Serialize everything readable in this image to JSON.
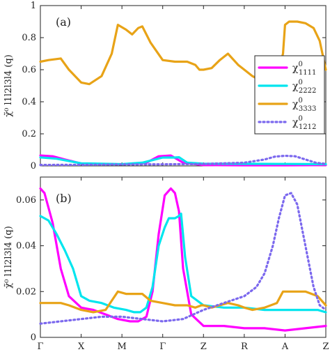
{
  "chart_data": [
    {
      "type": "line",
      "panel_label": "(a)",
      "ylabel": "χ̃⁰ l1l2l3l4 (q)",
      "ylim": [
        0,
        1
      ],
      "yticks": [
        "0",
        "0.2",
        "0.4",
        "0.6",
        "0.8",
        "1"
      ],
      "x_categories": [
        "Γ",
        "X",
        "M",
        "Γ",
        "Z",
        "R",
        "A",
        "Z"
      ],
      "grid": false,
      "legend_position": "right",
      "series": [
        {
          "name": "χ⁰1111",
          "color": "#ff00ff",
          "style": "solid",
          "x": [
            0,
            0.3,
            0.6,
            1,
            2,
            2.6,
            2.9,
            3.2,
            3.5,
            4,
            5,
            6,
            7
          ],
          "y": [
            0.065,
            0.06,
            0.04,
            0.015,
            0.01,
            0.02,
            0.06,
            0.065,
            0.02,
            0.005,
            0.004,
            0.004,
            0.005
          ]
        },
        {
          "name": "χ⁰2222",
          "color": "#00e5ee",
          "style": "solid",
          "x": [
            0,
            0.4,
            1,
            2,
            2.5,
            3,
            3.3,
            3.4,
            3.6,
            4,
            5,
            6,
            7
          ],
          "y": [
            0.053,
            0.045,
            0.016,
            0.011,
            0.02,
            0.052,
            0.052,
            0.054,
            0.02,
            0.014,
            0.013,
            0.012,
            0.011
          ]
        },
        {
          "name": "χ⁰3333",
          "color": "#e8a317",
          "style": "solid",
          "x": [
            0,
            0.2,
            0.5,
            0.7,
            1,
            1.2,
            1.5,
            1.75,
            1.9,
            2.1,
            2.25,
            2.4,
            2.5,
            2.7,
            3,
            3.3,
            3.6,
            3.8,
            3.9,
            4,
            4.2,
            4.4,
            4.6,
            4.85,
            5,
            5.2,
            5.5,
            5.8,
            5.95,
            6,
            6.1,
            6.3,
            6.5,
            6.7,
            6.85,
            7
          ],
          "y": [
            0.65,
            0.66,
            0.67,
            0.6,
            0.52,
            0.51,
            0.56,
            0.7,
            0.88,
            0.85,
            0.82,
            0.86,
            0.87,
            0.77,
            0.66,
            0.65,
            0.65,
            0.63,
            0.6,
            0.6,
            0.61,
            0.66,
            0.7,
            0.63,
            0.6,
            0.56,
            0.52,
            0.56,
            0.7,
            0.88,
            0.9,
            0.9,
            0.89,
            0.86,
            0.78,
            0.6
          ]
        },
        {
          "name": "χ⁰1212",
          "color": "#7b68ee",
          "style": "dotted",
          "x": [
            0,
            1,
            2,
            3,
            4,
            4.5,
            5,
            5.5,
            5.75,
            6,
            6.25,
            6.5,
            6.75,
            7
          ],
          "y": [
            0.006,
            0.007,
            0.009,
            0.01,
            0.012,
            0.016,
            0.02,
            0.04,
            0.058,
            0.063,
            0.06,
            0.04,
            0.02,
            0.012
          ]
        }
      ]
    },
    {
      "type": "line",
      "panel_label": "(b)",
      "ylabel": "χ̃⁰ l1l2l3l4 (q)",
      "ylim": [
        0,
        0.07
      ],
      "yticks": [
        "0",
        "0.02",
        "0.04",
        "0.06"
      ],
      "x_categories": [
        "Γ",
        "X",
        "M",
        "Γ",
        "Z",
        "R",
        "A",
        "Z"
      ],
      "grid": false,
      "series": [
        {
          "name": "χ⁰1111",
          "color": "#ff00ff",
          "style": "solid",
          "x": [
            0,
            0.1,
            0.3,
            0.5,
            0.7,
            1,
            1.3,
            1.6,
            1.9,
            2.2,
            2.4,
            2.6,
            2.75,
            2.9,
            3.05,
            3.2,
            3.3,
            3.4,
            3.5,
            3.7,
            4,
            4.5,
            5,
            5.5,
            6,
            6.5,
            7
          ],
          "y": [
            0.065,
            0.063,
            0.05,
            0.03,
            0.018,
            0.013,
            0.012,
            0.01,
            0.008,
            0.007,
            0.007,
            0.009,
            0.02,
            0.045,
            0.062,
            0.065,
            0.063,
            0.055,
            0.03,
            0.01,
            0.005,
            0.005,
            0.004,
            0.004,
            0.003,
            0.004,
            0.005
          ]
        },
        {
          "name": "χ⁰2222",
          "color": "#00e5ee",
          "style": "solid",
          "x": [
            0,
            0.2,
            0.4,
            0.6,
            0.8,
            1,
            1.2,
            1.5,
            1.8,
            2.1,
            2.3,
            2.45,
            2.6,
            2.75,
            2.9,
            3.05,
            3.15,
            3.3,
            3.4,
            3.45,
            3.55,
            3.7,
            4,
            4.5,
            5,
            5.5,
            6,
            6.5,
            6.8,
            7
          ],
          "y": [
            0.053,
            0.051,
            0.045,
            0.038,
            0.03,
            0.018,
            0.016,
            0.015,
            0.013,
            0.012,
            0.011,
            0.011,
            0.013,
            0.022,
            0.04,
            0.048,
            0.052,
            0.052,
            0.053,
            0.054,
            0.035,
            0.018,
            0.014,
            0.013,
            0.013,
            0.012,
            0.012,
            0.012,
            0.012,
            0.011
          ]
        },
        {
          "name": "χ⁰3333",
          "color": "#e8a317",
          "style": "solid",
          "x": [
            0,
            0.3,
            0.5,
            0.7,
            1,
            1.3,
            1.6,
            1.75,
            1.9,
            2.1,
            2.3,
            2.5,
            2.7,
            3,
            3.3,
            3.6,
            3.8,
            3.95,
            4,
            4.2,
            4.4,
            4.6,
            4.85,
            5,
            5.2,
            5.5,
            5.8,
            5.95,
            6,
            6.2,
            6.5,
            6.8,
            7
          ],
          "y": [
            0.015,
            0.015,
            0.015,
            0.014,
            0.012,
            0.011,
            0.012,
            0.016,
            0.02,
            0.019,
            0.019,
            0.019,
            0.016,
            0.015,
            0.014,
            0.014,
            0.013,
            0.014,
            0.014,
            0.013,
            0.014,
            0.015,
            0.014,
            0.013,
            0.012,
            0.013,
            0.015,
            0.02,
            0.02,
            0.02,
            0.02,
            0.018,
            0.014
          ]
        },
        {
          "name": "χ⁰1212",
          "color": "#7b68ee",
          "style": "dotted",
          "x": [
            0,
            0.5,
            1,
            1.5,
            2,
            2.5,
            3,
            3.5,
            4,
            4.5,
            5,
            5.3,
            5.5,
            5.7,
            5.85,
            6,
            6.15,
            6.3,
            6.5,
            6.7,
            6.85,
            7
          ],
          "y": [
            0.006,
            0.007,
            0.008,
            0.009,
            0.009,
            0.008,
            0.007,
            0.008,
            0.012,
            0.015,
            0.018,
            0.022,
            0.028,
            0.04,
            0.052,
            0.062,
            0.063,
            0.058,
            0.04,
            0.022,
            0.014,
            0.012
          ]
        }
      ]
    }
  ],
  "legend": {
    "items": [
      {
        "base": "χ",
        "sup": "0",
        "sub": "1111",
        "color": "#ff00ff",
        "style": "solid"
      },
      {
        "base": "χ",
        "sup": "0",
        "sub": "2222",
        "color": "#00e5ee",
        "style": "solid"
      },
      {
        "base": "χ",
        "sup": "0",
        "sub": "3333",
        "color": "#e8a317",
        "style": "solid"
      },
      {
        "base": "χ",
        "sup": "0",
        "sub": "1212",
        "color": "#7b68ee",
        "style": "dotted"
      }
    ]
  }
}
